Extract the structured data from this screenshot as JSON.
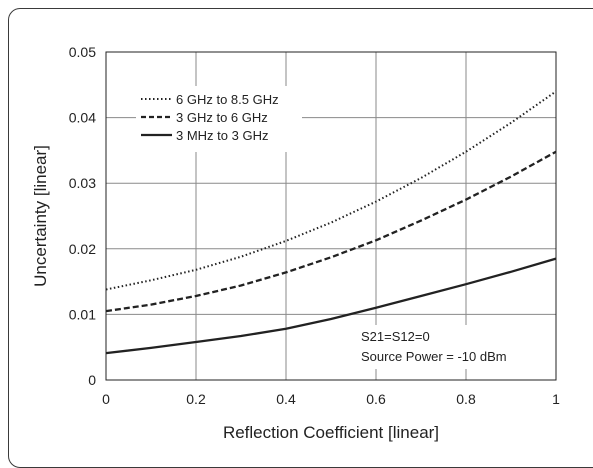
{
  "chart_data": {
    "type": "line",
    "xlabel": "Reflection Coefficient [linear]",
    "ylabel": "Uncertainty [linear]",
    "xlim": [
      0,
      1
    ],
    "ylim": [
      0,
      0.05
    ],
    "xticks": [
      0,
      0.2,
      0.4,
      0.6,
      0.8,
      1
    ],
    "xtick_labels": [
      "0",
      "0.2",
      "0.4",
      "0.6",
      "0.8",
      "1"
    ],
    "yticks": [
      0,
      0.01,
      0.02,
      0.03,
      0.04,
      0.05
    ],
    "ytick_labels": [
      "0",
      "0.01",
      "0.02",
      "0.03",
      "0.04",
      "0.05"
    ],
    "grid": true,
    "legend_position": "top-left",
    "x": [
      0,
      0.1,
      0.2,
      0.3,
      0.4,
      0.5,
      0.6,
      0.7,
      0.8,
      0.9,
      1.0
    ],
    "series": [
      {
        "name": "6 GHz to 8.5 GHz",
        "style": "dotted",
        "values": [
          0.0138,
          0.0152,
          0.0168,
          0.0188,
          0.0212,
          0.024,
          0.0272,
          0.0308,
          0.0348,
          0.0392,
          0.044
        ]
      },
      {
        "name": "3 GHz to 6 GHz",
        "style": "dashed",
        "values": [
          0.0105,
          0.0115,
          0.0128,
          0.0144,
          0.0164,
          0.0187,
          0.0213,
          0.0243,
          0.0275,
          0.031,
          0.0348
        ]
      },
      {
        "name": "3 MHz to 3 GHz",
        "style": "solid",
        "values": [
          0.0041,
          0.0049,
          0.0058,
          0.0067,
          0.0078,
          0.0093,
          0.011,
          0.0128,
          0.0146,
          0.0165,
          0.0185
        ]
      }
    ],
    "annotation": [
      "S21=S12=0",
      "Source Power = -10 dBm"
    ],
    "colors": {
      "line": "#222222",
      "grid": "#8a8a8a",
      "axis": "#222222"
    }
  }
}
